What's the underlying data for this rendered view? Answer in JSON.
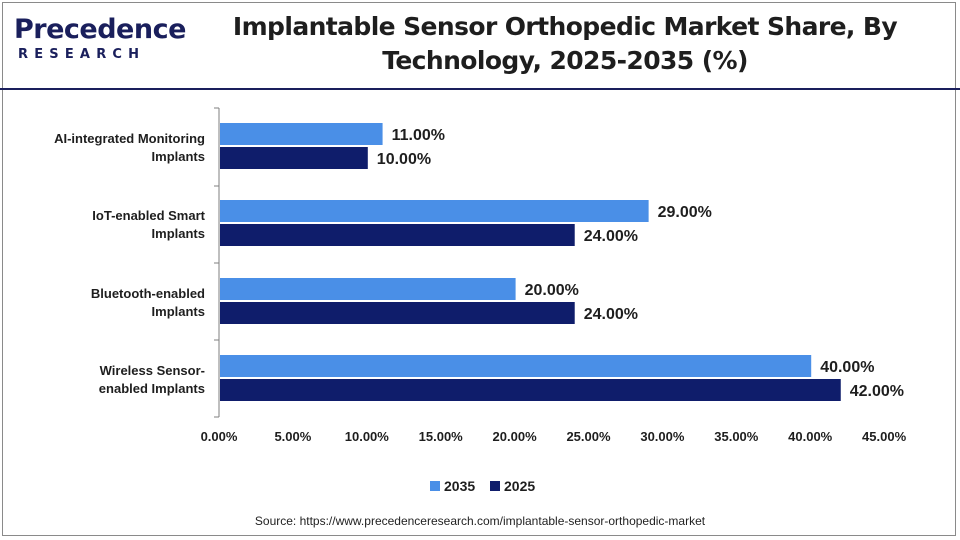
{
  "brand": {
    "name": "Precedence",
    "sub": "RESEARCH"
  },
  "header": {
    "title_line1": "Implantable Sensor Orthopedic Market Share, By",
    "title_line2": "Technology, 2025-2035 (%)"
  },
  "source": "Source: https://www.precedenceresearch.com/implantable-sensor-orthopedic-market",
  "colors": {
    "series_2035": "#4a8fe7",
    "series_2025": "#0f1d6b",
    "brand": "#1a1f5c"
  },
  "chart_data": {
    "type": "bar",
    "orientation": "horizontal",
    "categories": [
      [
        "AI-integrated Monitoring",
        "Implants"
      ],
      [
        "IoT-enabled Smart",
        "Implants"
      ],
      [
        "Bluetooth-enabled",
        "Implants"
      ],
      [
        "Wireless Sensor-",
        "enabled Implants"
      ]
    ],
    "series": [
      {
        "name": "2035",
        "values": [
          11,
          29,
          20,
          40
        ],
        "labels": [
          "11.00%",
          "29.00%",
          "20.00%",
          "40.00%"
        ]
      },
      {
        "name": "2025",
        "values": [
          10,
          24,
          24,
          42
        ],
        "labels": [
          "10.00%",
          "24.00%",
          "24.00%",
          "42.00%"
        ]
      }
    ],
    "xlim": [
      0,
      45
    ],
    "x_ticks": [
      "0.00%",
      "5.00%",
      "10.00%",
      "15.00%",
      "20.00%",
      "25.00%",
      "30.00%",
      "35.00%",
      "40.00%",
      "45.00%"
    ],
    "grid": false,
    "legend_position": "bottom"
  }
}
